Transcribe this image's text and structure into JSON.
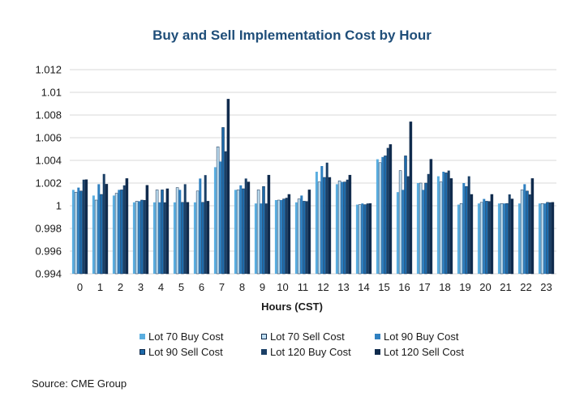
{
  "chart_data": {
    "type": "bar",
    "title": "Buy and Sell Implementation Cost by Hour",
    "xlabel": "Hours (CST)",
    "ylabel": "",
    "ylim": [
      0.994,
      1.012
    ],
    "yticks": [
      "1.012",
      "1.01",
      "1.008",
      "1.006",
      "1.004",
      "1.002",
      "1",
      "0.998",
      "0.996",
      "0.994"
    ],
    "ytick_values": [
      1.012,
      1.01,
      1.008,
      1.006,
      1.004,
      1.002,
      1.0,
      0.998,
      0.996,
      0.994
    ],
    "categories": [
      "0",
      "1",
      "2",
      "3",
      "4",
      "5",
      "6",
      "7",
      "8",
      "9",
      "10",
      "11",
      "12",
      "13",
      "14",
      "15",
      "16",
      "17",
      "18",
      "19",
      "20",
      "21",
      "22",
      "23"
    ],
    "legend_position": "bottom",
    "grid": true,
    "series": [
      {
        "name": "Lot 70 Buy Cost",
        "color": "#5aaee0",
        "outlined": false,
        "values": [
          1.0014,
          1.0009,
          1.0009,
          1.0003,
          1.0003,
          1.0003,
          1.0003,
          1.0034,
          1.0014,
          1.0002,
          1.0005,
          1.0003,
          1.003,
          1.0019,
          1.0001,
          1.0041,
          1.0012,
          1.002,
          1.0026,
          1.0001,
          1.0002,
          1.0002,
          1.0002,
          1.0002
        ]
      },
      {
        "name": "Lot 70 Sell Cost",
        "color": "#bfdff2",
        "outlined": true,
        "values": [
          1.0012,
          1.0005,
          1.0011,
          1.0004,
          1.0014,
          1.0016,
          1.0013,
          1.0052,
          1.0014,
          1.0014,
          1.0005,
          1.0006,
          1.0021,
          1.0022,
          1.0001,
          1.0038,
          1.0031,
          1.002,
          1.0021,
          1.0002,
          1.0003,
          1.0002,
          1.0014,
          1.0002
        ]
      },
      {
        "name": "Lot 90 Buy Cost",
        "color": "#2f80c0",
        "outlined": false,
        "values": [
          1.0016,
          1.0019,
          1.0014,
          1.0004,
          1.0003,
          1.0014,
          1.0024,
          1.0039,
          1.0018,
          1.0002,
          1.0005,
          1.0009,
          1.0035,
          1.0021,
          1.0002,
          1.0043,
          1.0014,
          1.0014,
          1.003,
          1.002,
          1.0006,
          1.0002,
          1.0019,
          1.0002
        ]
      },
      {
        "name": "Lot 90 Sell Cost",
        "color": "#1d6aaa",
        "outlined": true,
        "values": [
          1.0013,
          1.001,
          1.0014,
          1.0005,
          1.0014,
          1.0003,
          1.0003,
          1.0069,
          1.0015,
          1.0017,
          1.0006,
          1.0004,
          1.0025,
          1.0021,
          1.0001,
          1.0044,
          1.0044,
          1.002,
          1.0029,
          1.0017,
          1.0004,
          1.0002,
          1.0013,
          1.0003
        ]
      },
      {
        "name": "Lot 120 Buy Cost",
        "color": "#1a3f66",
        "outlined": false,
        "values": [
          1.0023,
          1.0028,
          1.0018,
          1.0005,
          1.0003,
          1.0019,
          1.0027,
          1.0048,
          1.0024,
          1.0002,
          1.0007,
          1.0004,
          1.0038,
          1.0023,
          1.0002,
          1.0051,
          1.0026,
          1.0028,
          1.0031,
          1.0026,
          1.0004,
          1.001,
          1.001,
          1.0003
        ]
      },
      {
        "name": "Lot 120 Sell Cost",
        "color": "#0f2a4c",
        "outlined": true,
        "values": [
          1.0023,
          1.0019,
          1.0024,
          1.0018,
          1.0015,
          1.0003,
          1.0004,
          1.0094,
          1.0021,
          1.0027,
          1.001,
          1.0014,
          1.0025,
          1.0027,
          1.0002,
          1.0054,
          1.0074,
          1.0041,
          1.0024,
          1.001,
          1.001,
          1.0006,
          1.0024,
          1.0003
        ]
      }
    ]
  },
  "source": "Source: CME Group"
}
